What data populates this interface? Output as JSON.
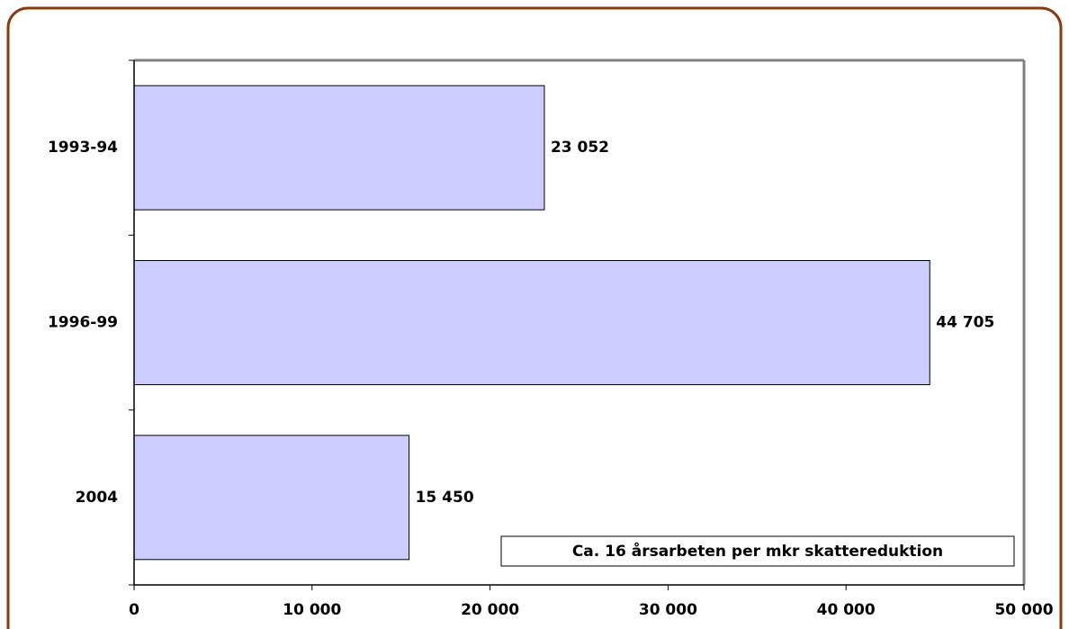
{
  "chart_data": {
    "type": "bar",
    "orientation": "horizontal",
    "categories": [
      "1993-94",
      "1996-99",
      "2004"
    ],
    "values": [
      23052,
      44705,
      15450
    ],
    "value_labels": [
      "23 052",
      "44 705",
      "15 450"
    ],
    "color": "#ccccff",
    "xlim": [
      0,
      50000
    ],
    "xticks": [
      0,
      {
        "value": 10000,
        "label": "10 000"
      },
      {
        "value": 20000,
        "label": "20 000"
      },
      {
        "value": 30000,
        "label": "30 000"
      },
      {
        "value": 40000,
        "label": "40 000"
      },
      {
        "value": 50000,
        "label": "50 000"
      }
    ],
    "annotation": "Ca. 16 årsarbeten per mkr skattereduktion"
  }
}
